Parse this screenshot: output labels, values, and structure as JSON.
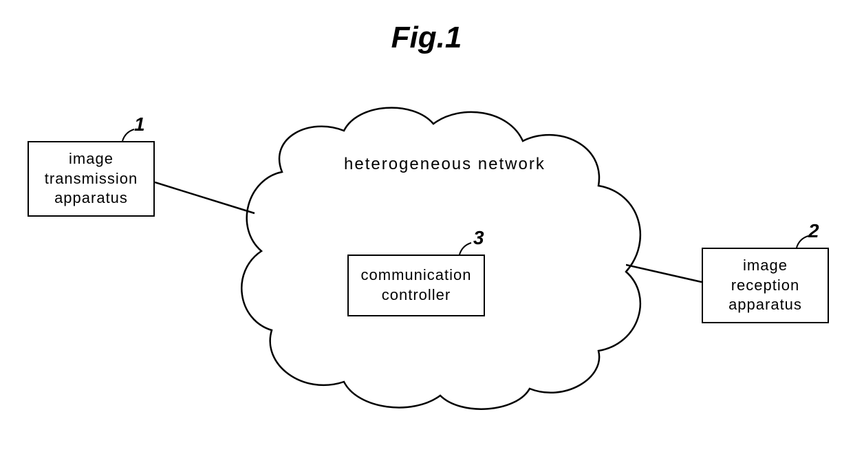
{
  "title": "Fig.1",
  "cloud": {
    "label": "heterogeneous  network",
    "stroke": "#000000",
    "stroke_width": 2,
    "fill": "#ffffff"
  },
  "nodes": {
    "left": {
      "ref": "1",
      "label": "image\ntransmission\napparatus"
    },
    "right": {
      "ref": "2",
      "label": "image\nreception\napparatus"
    },
    "center": {
      "ref": "3",
      "label": "communication\ncontroller"
    }
  },
  "colors": {
    "line": "#000000",
    "background": "#ffffff",
    "text": "#000000"
  },
  "font": {
    "title_size": 44,
    "label_size": 22,
    "ref_size": 28
  }
}
